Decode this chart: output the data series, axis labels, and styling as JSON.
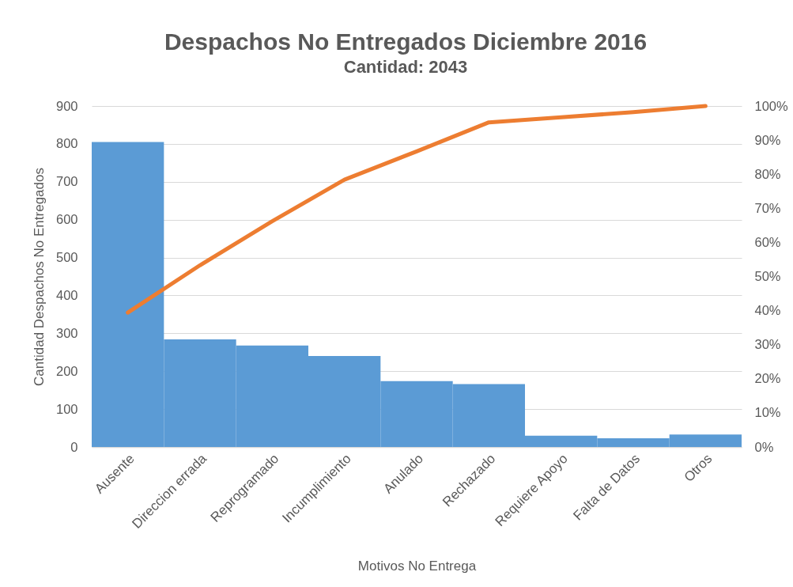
{
  "chart_data": {
    "type": "bar",
    "title": "Despachos No Entregados Diciembre 2016",
    "subtitle": "Cantidad: 2043",
    "xlabel": "Motivos No Entrega",
    "ylabel": "Cantidad Despachos No Entregados",
    "categories": [
      "Ausente",
      "Direccion errada",
      "Reprogramado",
      "Incumplimiento",
      "Anulado",
      "Rechazado",
      "Requiere Apoyo",
      "Falta de Datos",
      "Otros"
    ],
    "series": [
      {
        "color": "#5b9bd5",
        "values": [
          805,
          284,
          268,
          240,
          174,
          166,
          30,
          23,
          33
        ]
      },
      {
        "type": "line",
        "axis": "y2",
        "color": "#ed7d31",
        "values": [
          39.4,
          53.3,
          66.2,
          78.4,
          86.7,
          95.2,
          96.7,
          98.2,
          100
        ]
      }
    ],
    "ylim": [
      0,
      900
    ],
    "yticks": [
      0,
      100,
      200,
      300,
      400,
      500,
      600,
      700,
      800,
      900
    ],
    "y2lim": [
      0,
      100
    ],
    "y2ticks": [
      {
        "value": 0,
        "label": "0%"
      },
      {
        "value": 10,
        "label": "10%"
      },
      {
        "value": 20,
        "label": "20%"
      },
      {
        "value": 30,
        "label": "30%"
      },
      {
        "value": 40,
        "label": "40%"
      },
      {
        "value": 50,
        "label": "50%"
      },
      {
        "value": 60,
        "label": "60%"
      },
      {
        "value": 70,
        "label": "70%"
      },
      {
        "value": 80,
        "label": "80%"
      },
      {
        "value": 90,
        "label": "90%"
      },
      {
        "value": 100,
        "label": "100%"
      }
    ],
    "grid": "y"
  }
}
